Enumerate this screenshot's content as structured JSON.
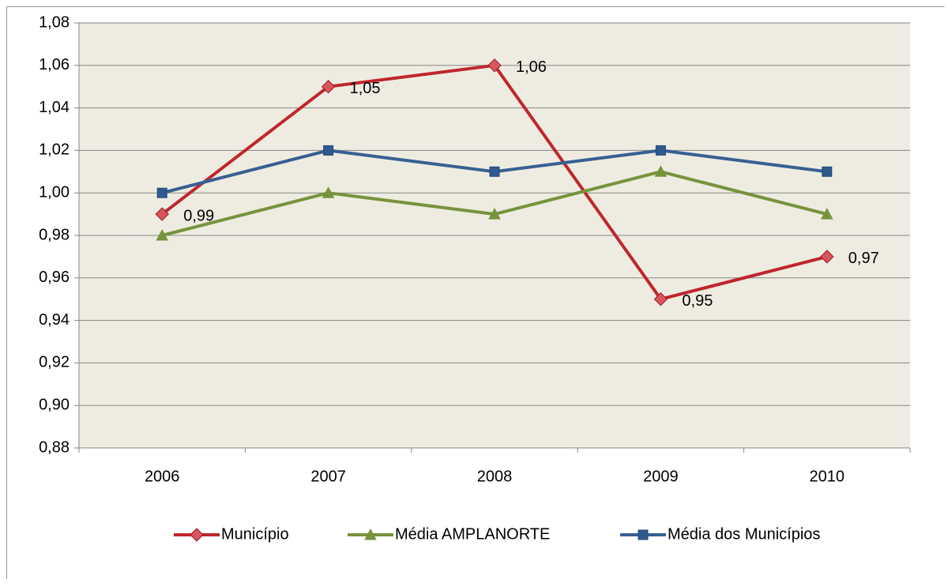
{
  "chart_data": {
    "type": "line",
    "categories": [
      "2006",
      "2007",
      "2008",
      "2009",
      "2010"
    ],
    "series": [
      {
        "name": "Município",
        "color": "#c0262d",
        "marker": "diamond",
        "values": [
          0.99,
          1.05,
          1.06,
          0.95,
          0.97
        ],
        "value_labels": [
          "0,99",
          "1,05",
          "1,06",
          "0,95",
          "0,97"
        ]
      },
      {
        "name": "Média AMPLANORTE",
        "color": "#77933c",
        "marker": "triangle",
        "values": [
          0.98,
          1.0,
          0.99,
          1.01,
          0.99
        ]
      },
      {
        "name": "Média dos Municípios",
        "color": "#376092",
        "marker": "square",
        "values": [
          1.0,
          1.02,
          1.01,
          1.02,
          1.01
        ]
      }
    ],
    "ylim": [
      0.88,
      1.08
    ],
    "yticks": [
      {
        "value": 0.88,
        "label": "0,88"
      },
      {
        "value": 0.9,
        "label": "0,90"
      },
      {
        "value": 0.92,
        "label": "0,92"
      },
      {
        "value": 0.94,
        "label": "0,94"
      },
      {
        "value": 0.96,
        "label": "0,96"
      },
      {
        "value": 0.98,
        "label": "0,98"
      },
      {
        "value": 1.0,
        "label": "1,00"
      },
      {
        "value": 1.02,
        "label": "1,02"
      },
      {
        "value": 1.04,
        "label": "1,04"
      },
      {
        "value": 1.06,
        "label": "1,06"
      },
      {
        "value": 1.08,
        "label": "1,08"
      }
    ],
    "grid": true,
    "legend": "bottom",
    "plot_background": "#eeece1"
  }
}
